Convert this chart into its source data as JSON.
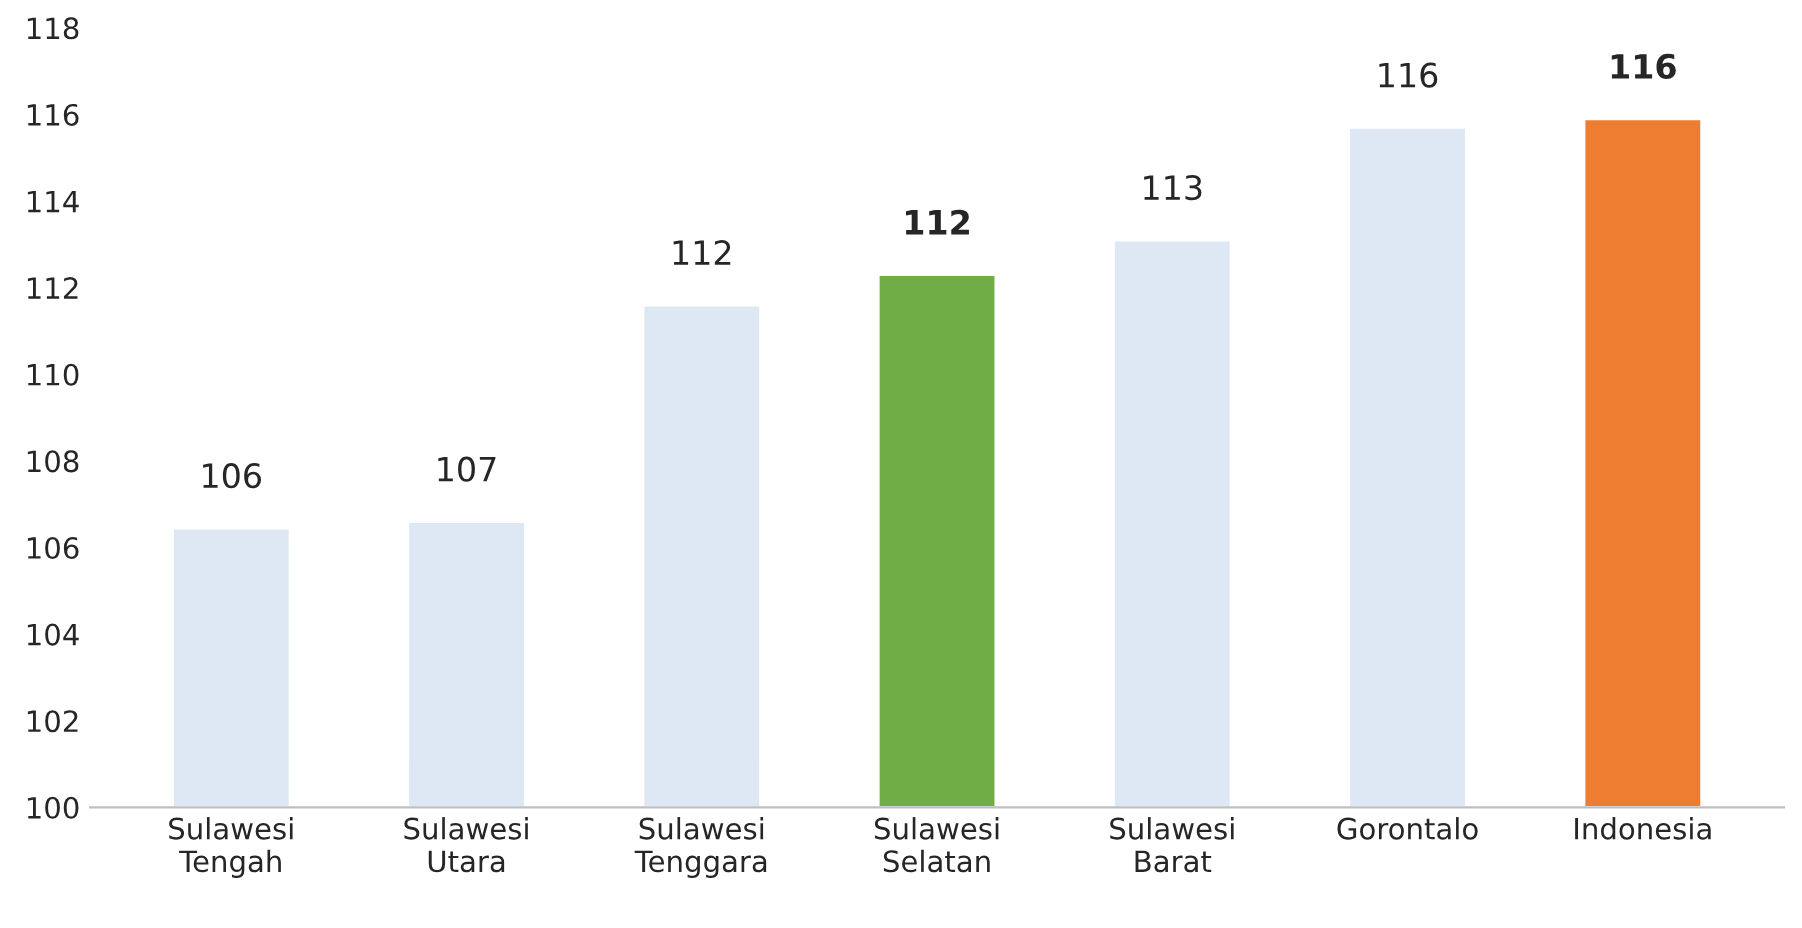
{
  "chart_data": {
    "type": "bar",
    "categories": [
      "Sulawesi\nTengah",
      "Sulawesi\nUtara",
      "Sulawesi\nTenggara",
      "Sulawesi\nSelatan",
      "Sulawesi\nBarat",
      "Gorontalo",
      "Indonesia"
    ],
    "values": [
      106.45,
      106.6,
      111.6,
      112.3,
      113.1,
      115.7,
      115.9
    ],
    "colors": [
      "#dee8f4",
      "#dee8f4",
      "#dee8f4",
      "#70ad47",
      "#dee8f4",
      "#dee8f4",
      "#ed7d31"
    ],
    "value_labels": [
      "106",
      "107",
      "112",
      "112",
      "113",
      "116",
      "116"
    ],
    "ylim": [
      100,
      118
    ],
    "yticks": [
      100,
      102,
      104,
      106,
      108,
      110,
      112,
      114,
      116,
      118
    ],
    "grid": false
  }
}
